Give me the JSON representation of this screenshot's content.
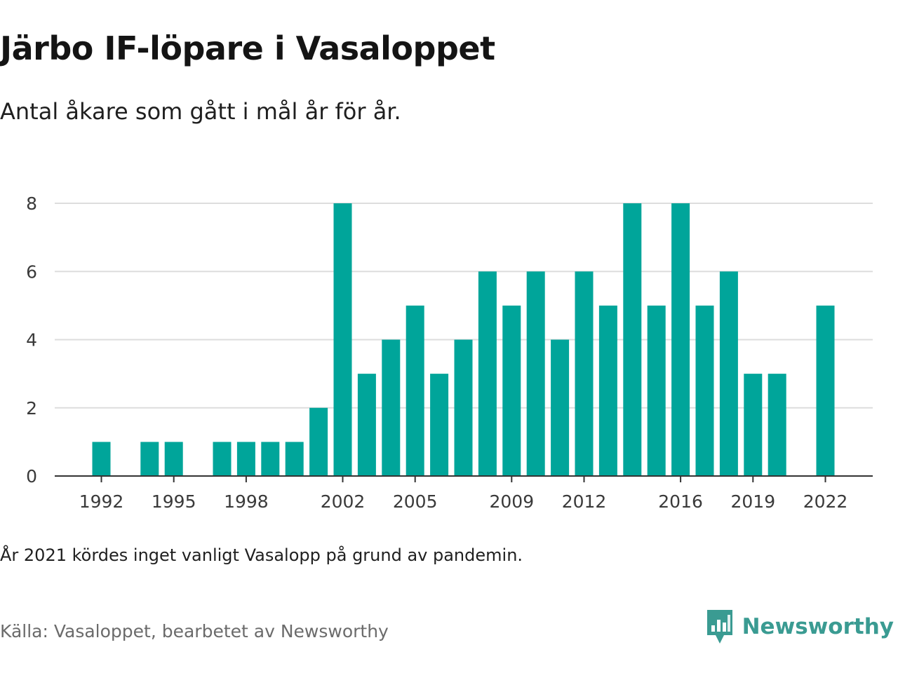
{
  "title": "Järbo IF-löpare i Vasaloppet",
  "subtitle": "Antal åkare som gått i mål år för år.",
  "note": "År 2021 kördes inget vanligt Vasalopp på grund av pandemin.",
  "source": "Källa: Vasaloppet, bearbetet av Newsworthy",
  "brand": {
    "name": "Newsworthy",
    "icon": "newsworthy-logo-icon",
    "color": "#3a9b92"
  },
  "colors": {
    "bar": "#00a59a",
    "grid": "#dddddd",
    "axis": "#333333",
    "tick_text": "#3a3a3a"
  },
  "chart_data": {
    "type": "bar",
    "x": [
      1992,
      1993,
      1994,
      1995,
      1996,
      1997,
      1998,
      1999,
      2000,
      2001,
      2002,
      2003,
      2004,
      2005,
      2006,
      2007,
      2008,
      2009,
      2010,
      2011,
      2012,
      2013,
      2014,
      2015,
      2016,
      2017,
      2018,
      2019,
      2020,
      2021,
      2022
    ],
    "values": [
      1,
      0,
      1,
      1,
      0,
      1,
      1,
      1,
      1,
      2,
      8,
      3,
      4,
      5,
      3,
      4,
      6,
      5,
      6,
      4,
      6,
      5,
      8,
      5,
      8,
      5,
      6,
      3,
      3,
      0,
      5
    ],
    "x_ticks": [
      "1992",
      "1995",
      "1998",
      "2002",
      "2005",
      "2009",
      "2012",
      "2016",
      "2019",
      "2022"
    ],
    "y_ticks": [
      "0",
      "2",
      "4",
      "6",
      "8"
    ],
    "ylim": [
      0,
      8
    ],
    "xlabel": "",
    "ylabel": "",
    "grid": true
  }
}
